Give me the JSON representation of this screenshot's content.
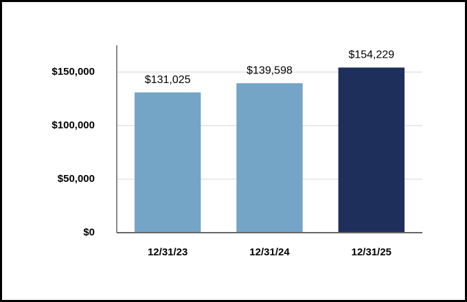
{
  "chart_data": {
    "type": "bar",
    "categories": [
      "12/31/23",
      "12/31/24",
      "12/31/25"
    ],
    "values": [
      131025,
      139598,
      154229
    ],
    "value_labels": [
      "$131,025",
      "$139,598",
      "$154,229"
    ],
    "colors": [
      "#74a5c6",
      "#74a5c6",
      "#1f2f5c"
    ],
    "ylim": [
      0,
      175000
    ],
    "yticks": [
      {
        "value": 0,
        "label": "$0"
      },
      {
        "value": 50000,
        "label": "$50,000"
      },
      {
        "value": 100000,
        "label": "$100,000"
      },
      {
        "value": 150000,
        "label": "$150,000"
      }
    ],
    "grid": true
  }
}
